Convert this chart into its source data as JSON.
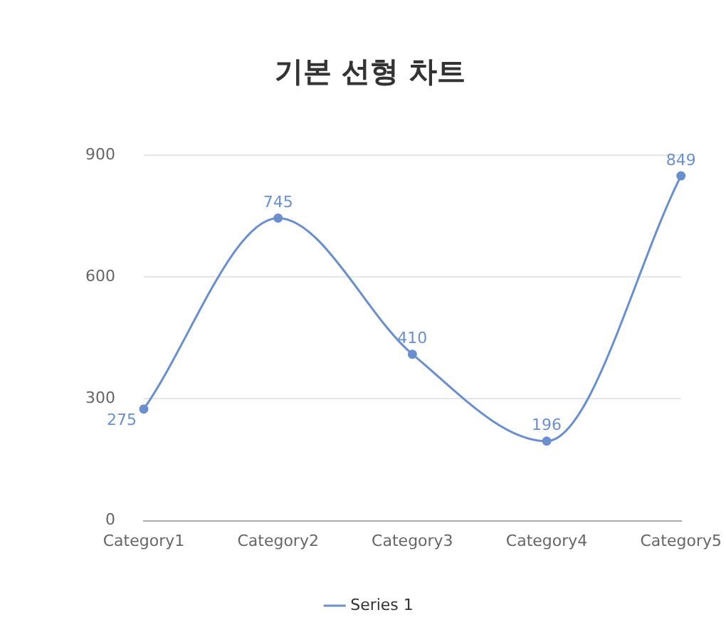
{
  "chart_data": {
    "type": "line",
    "title": "기본 선형 차트",
    "categories": [
      "Category1",
      "Category2",
      "Category3",
      "Category4",
      "Category5"
    ],
    "series": [
      {
        "name": "Series 1",
        "color": "#6a8fcf",
        "values": [
          275,
          745,
          410,
          196,
          849
        ]
      }
    ],
    "ylim": [
      0,
      900
    ],
    "yticks": [
      0,
      300,
      600,
      900
    ],
    "grid": "y",
    "legend": "bottom",
    "marker": "circle",
    "data_labels": true
  }
}
